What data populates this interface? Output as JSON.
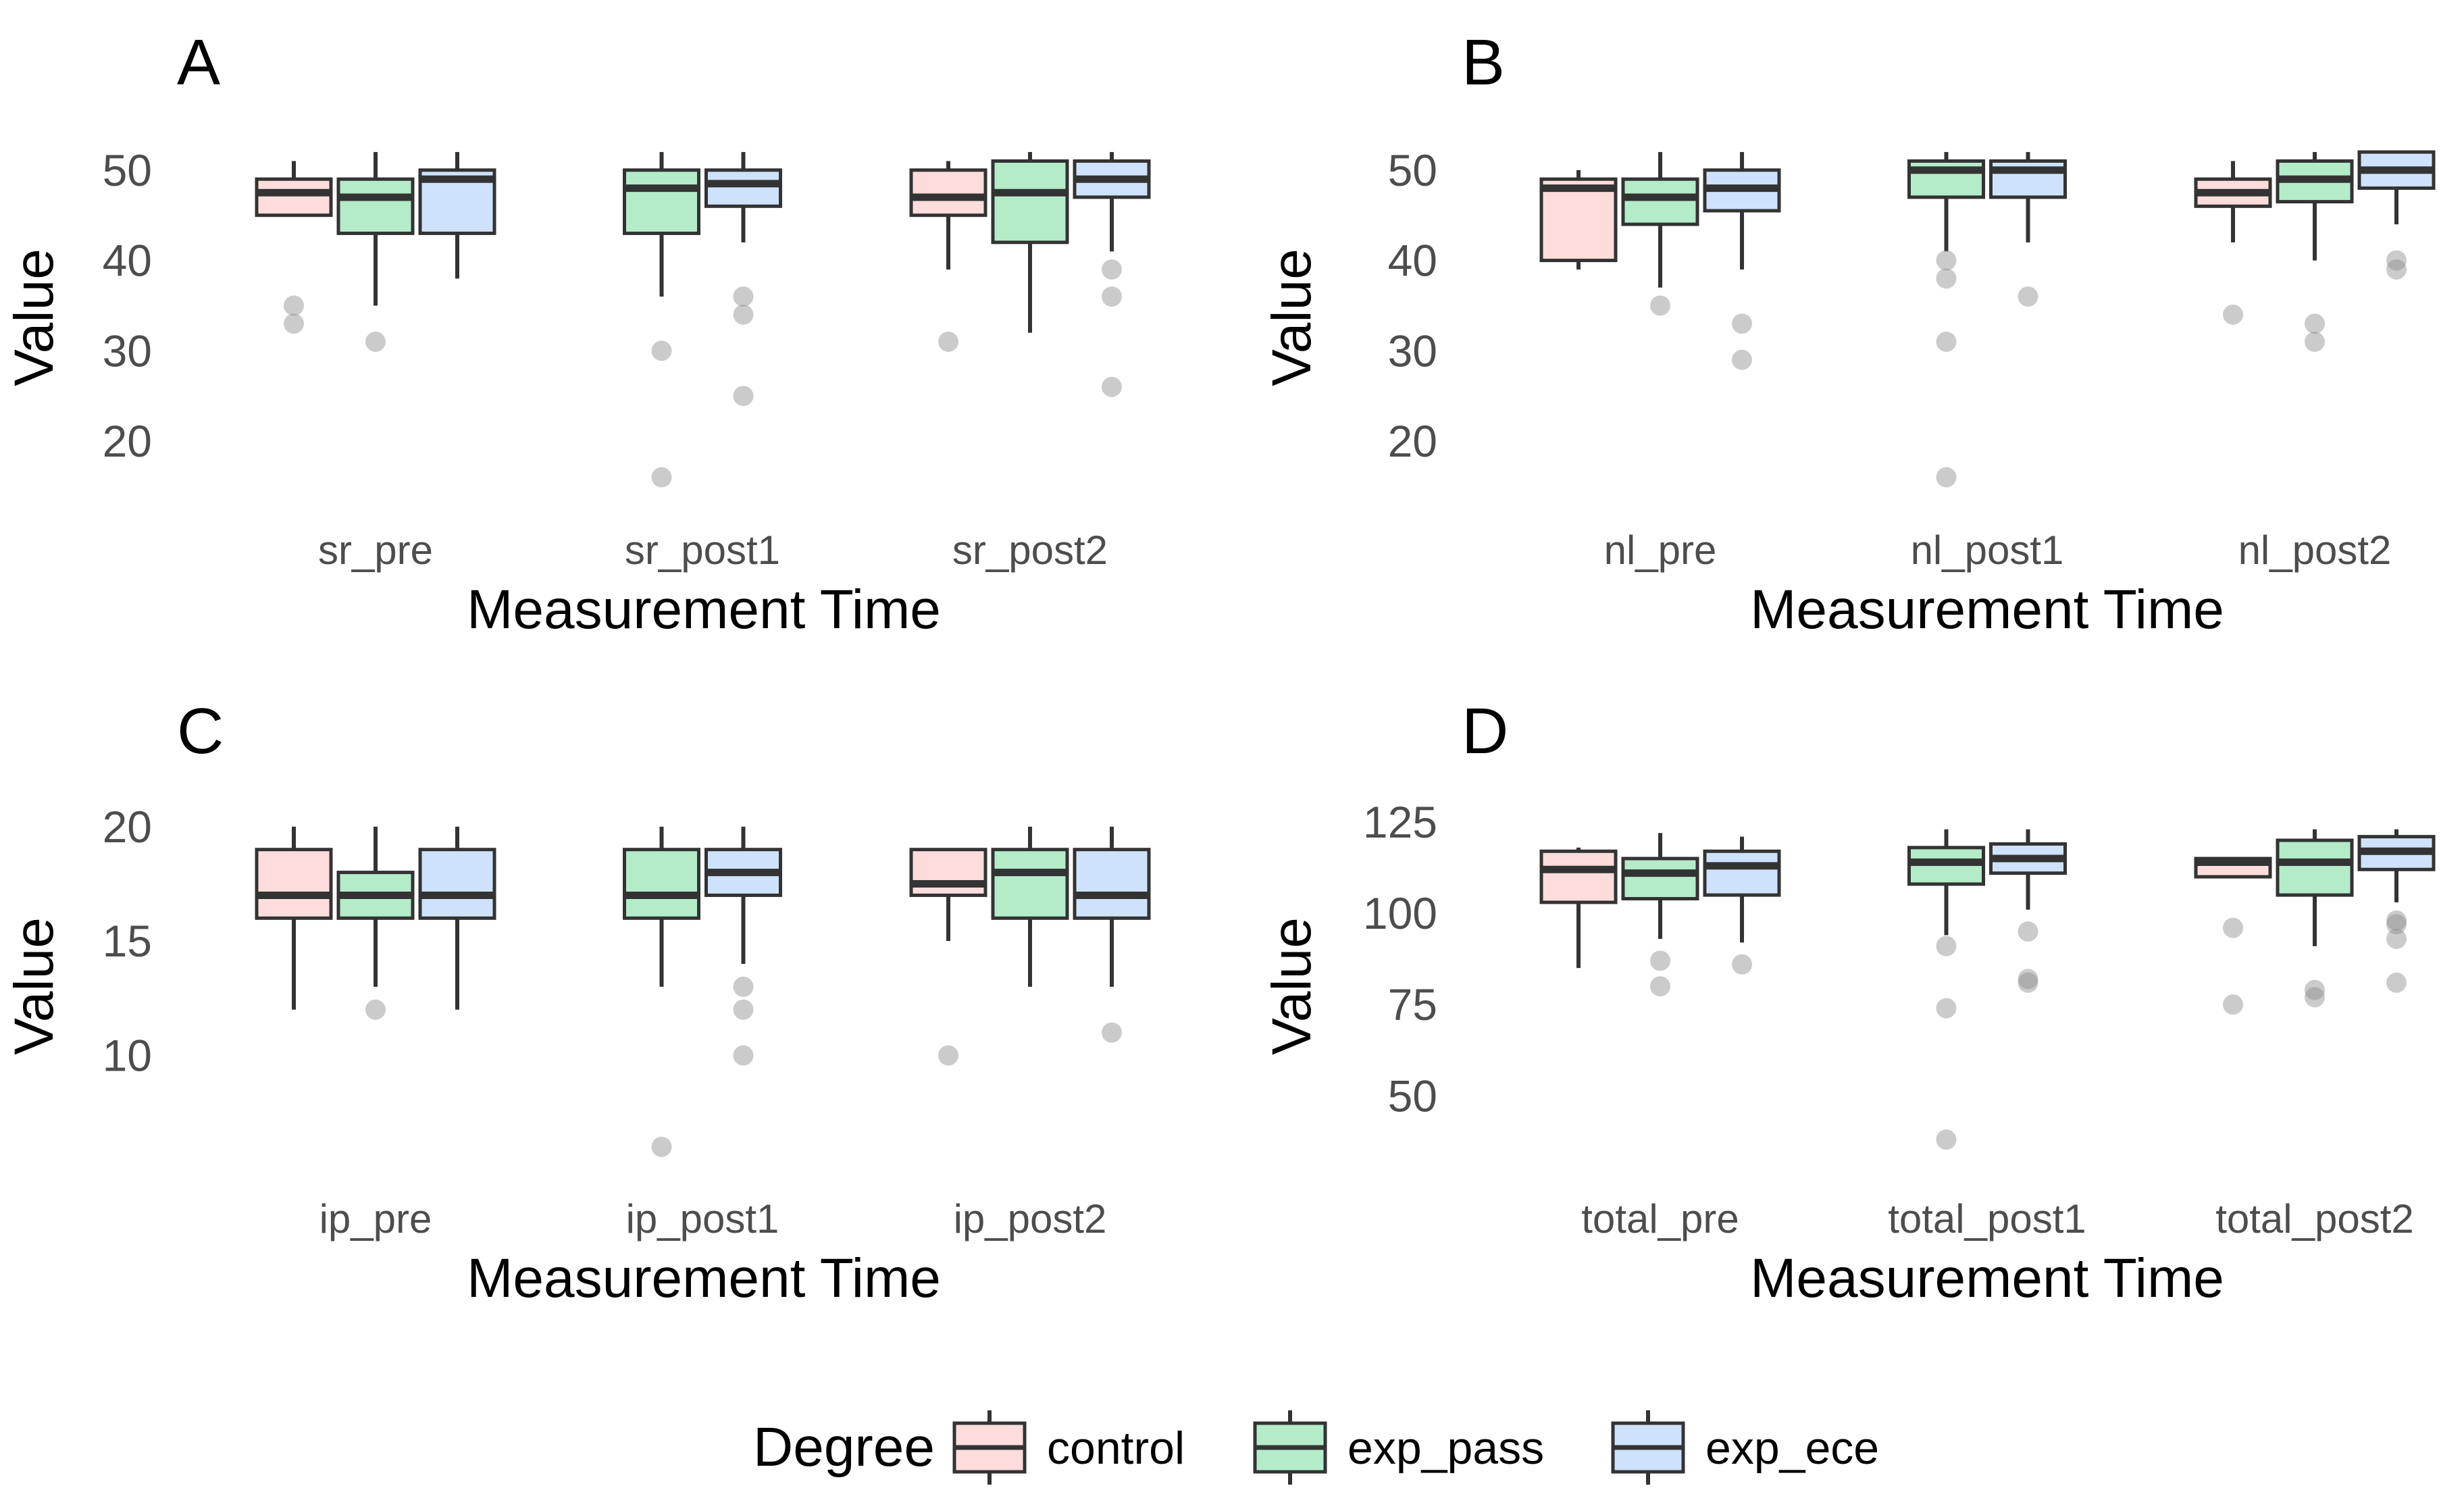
{
  "legend": {
    "title": "Degree",
    "entries": [
      "control",
      "exp_pass",
      "exp_ece"
    ]
  },
  "colors": {
    "control": "#fddcdc",
    "exp_pass": "#b4ecc9",
    "exp_ece": "#cfe2fb",
    "box_stroke": "#333333",
    "outlier": "#8c8c8c"
  },
  "chart_data": [
    {
      "type": "box",
      "panel": "A",
      "xlabel": "Measurement Time",
      "ylabel": "Value",
      "categories": [
        "sr_pre",
        "sr_post1",
        "sr_post2"
      ],
      "yticks": [
        20,
        30,
        40,
        50
      ],
      "ylim": [
        13.5,
        53.5
      ],
      "groups": [
        [
          {
            "series": "control",
            "min": 45,
            "q1": 45,
            "median": 47.5,
            "q3": 49,
            "max": 51,
            "outliers": [
              35,
              33
            ]
          },
          {
            "series": "exp_pass",
            "min": 35,
            "q1": 43,
            "median": 47,
            "q3": 49,
            "max": 52,
            "outliers": [
              31
            ]
          },
          {
            "series": "exp_ece",
            "min": 38,
            "q1": 43,
            "median": 49,
            "q3": 50,
            "max": 52,
            "outliers": []
          }
        ],
        [
          {
            "series": "exp_pass",
            "min": 36,
            "q1": 43,
            "median": 48,
            "q3": 50,
            "max": 52,
            "outliers": [
              30,
              16
            ]
          },
          {
            "series": "exp_ece",
            "min": 42,
            "q1": 46,
            "median": 48.5,
            "q3": 50,
            "max": 52,
            "outliers": [
              36,
              34,
              25
            ]
          }
        ],
        [
          {
            "series": "control",
            "min": 39,
            "q1": 45,
            "median": 47,
            "q3": 50,
            "max": 51,
            "outliers": [
              31
            ]
          },
          {
            "series": "exp_pass",
            "min": 32,
            "q1": 42,
            "median": 47.5,
            "q3": 51,
            "max": 52,
            "outliers": []
          },
          {
            "series": "exp_ece",
            "min": 41,
            "q1": 47,
            "median": 49,
            "q3": 51,
            "max": 52,
            "outliers": [
              39,
              36,
              26
            ]
          }
        ]
      ]
    },
    {
      "type": "box",
      "panel": "B",
      "xlabel": "Measurement Time",
      "ylabel": "Value",
      "categories": [
        "nl_pre",
        "nl_post1",
        "nl_post2"
      ],
      "yticks": [
        20,
        30,
        40,
        50
      ],
      "ylim": [
        13.5,
        53.5
      ],
      "groups": [
        [
          {
            "series": "control",
            "min": 39,
            "q1": 40,
            "median": 48,
            "q3": 49,
            "max": 50,
            "outliers": []
          },
          {
            "series": "exp_pass",
            "min": 37,
            "q1": 44,
            "median": 47,
            "q3": 49,
            "max": 52,
            "outliers": [
              35
            ]
          },
          {
            "series": "exp_ece",
            "min": 39,
            "q1": 45.5,
            "median": 48,
            "q3": 50,
            "max": 52,
            "outliers": [
              33,
              29
            ]
          }
        ],
        [
          {
            "series": "exp_pass",
            "min": 41,
            "q1": 47,
            "median": 50,
            "q3": 51,
            "max": 52,
            "outliers": [
              40,
              38,
              31,
              16
            ]
          },
          {
            "series": "exp_ece",
            "min": 42,
            "q1": 47,
            "median": 50,
            "q3": 51,
            "max": 52,
            "outliers": [
              36
            ]
          }
        ],
        [
          {
            "series": "control",
            "min": 42,
            "q1": 46,
            "median": 47.5,
            "q3": 49,
            "max": 51,
            "outliers": [
              34
            ]
          },
          {
            "series": "exp_pass",
            "min": 40,
            "q1": 46.5,
            "median": 49,
            "q3": 51,
            "max": 52,
            "outliers": [
              33,
              31
            ]
          },
          {
            "series": "exp_ece",
            "min": 44,
            "q1": 48,
            "median": 50,
            "q3": 52,
            "max": 52,
            "outliers": [
              40,
              39
            ]
          }
        ]
      ]
    },
    {
      "type": "box",
      "panel": "C",
      "xlabel": "Measurement Time",
      "ylabel": "Value",
      "categories": [
        "ip_pre",
        "ip_post1",
        "ip_post2"
      ],
      "yticks": [
        10,
        15,
        20
      ],
      "ylim": [
        5.2,
        21.0
      ],
      "groups": [
        [
          {
            "series": "control",
            "min": 12,
            "q1": 16,
            "median": 17,
            "q3": 19,
            "max": 20,
            "outliers": []
          },
          {
            "series": "exp_pass",
            "min": 13,
            "q1": 16,
            "median": 17,
            "q3": 18,
            "max": 20,
            "outliers": [
              12
            ]
          },
          {
            "series": "exp_ece",
            "min": 12,
            "q1": 16,
            "median": 17,
            "q3": 19,
            "max": 20,
            "outliers": []
          }
        ],
        [
          {
            "series": "exp_pass",
            "min": 13,
            "q1": 16,
            "median": 17,
            "q3": 19,
            "max": 20,
            "outliers": [
              6
            ]
          },
          {
            "series": "exp_ece",
            "min": 14,
            "q1": 17,
            "median": 18,
            "q3": 19,
            "max": 20,
            "outliers": [
              13,
              12,
              10
            ]
          }
        ],
        [
          {
            "series": "control",
            "min": 15,
            "q1": 17,
            "median": 17.5,
            "q3": 19,
            "max": 19,
            "outliers": [
              10
            ]
          },
          {
            "series": "exp_pass",
            "min": 13,
            "q1": 16,
            "median": 18,
            "q3": 19,
            "max": 20,
            "outliers": []
          },
          {
            "series": "exp_ece",
            "min": 13,
            "q1": 16,
            "median": 17,
            "q3": 19,
            "max": 20,
            "outliers": [
              11
            ]
          }
        ]
      ]
    },
    {
      "type": "box",
      "panel": "D",
      "xlabel": "Measurement Time",
      "ylabel": "Value",
      "categories": [
        "total_pre",
        "total_post1",
        "total_post2"
      ],
      "yticks": [
        50,
        75,
        100,
        125
      ],
      "ylim": [
        31,
        130
      ],
      "groups": [
        [
          {
            "series": "control",
            "min": 85,
            "q1": 103,
            "median": 112,
            "q3": 117,
            "max": 118,
            "outliers": []
          },
          {
            "series": "exp_pass",
            "min": 93,
            "q1": 104,
            "median": 111,
            "q3": 115,
            "max": 122,
            "outliers": [
              87,
              80
            ]
          },
          {
            "series": "exp_ece",
            "min": 92,
            "q1": 105,
            "median": 113,
            "q3": 117,
            "max": 121,
            "outliers": [
              86
            ]
          }
        ],
        [
          {
            "series": "exp_pass",
            "min": 94,
            "q1": 108,
            "median": 114,
            "q3": 118,
            "max": 123,
            "outliers": [
              91,
              74,
              38
            ]
          },
          {
            "series": "exp_ece",
            "min": 101,
            "q1": 111,
            "median": 115,
            "q3": 119,
            "max": 123,
            "outliers": [
              95,
              82,
              81
            ]
          }
        ],
        [
          {
            "series": "control",
            "min": 110,
            "q1": 110,
            "median": 114,
            "q3": 115,
            "max": 115,
            "outliers": [
              96,
              75
            ]
          },
          {
            "series": "exp_pass",
            "min": 91,
            "q1": 105,
            "median": 114,
            "q3": 120,
            "max": 123,
            "outliers": [
              79,
              77
            ]
          },
          {
            "series": "exp_ece",
            "min": 103,
            "q1": 112,
            "median": 117,
            "q3": 121,
            "max": 123,
            "outliers": [
              98,
              97,
              93,
              81
            ]
          }
        ]
      ]
    }
  ]
}
